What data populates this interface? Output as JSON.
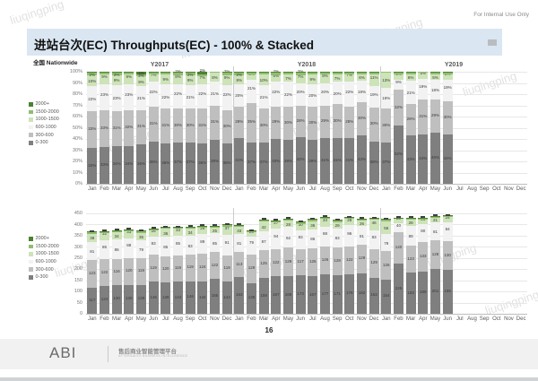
{
  "meta": {
    "confidential": "For Internal Use Only",
    "page_number": "16"
  },
  "title": {
    "text": "进站台次(EC) Throughputs(EC)  - 100% & Stacked"
  },
  "region_label": "全国 Nationwide",
  "watermark": "liuqingping",
  "legend": [
    "2000+",
    "1500-2000",
    "1000-1500",
    "600-1000",
    "300-600",
    "0-300"
  ],
  "footer": {
    "logo": "ABI",
    "platform_cn": "售后商业智能管理平台",
    "platform_en": "AFTERSALES BUSINESS INTELLIGENCE"
  },
  "colors": {
    "band_0_300": "#7f7f7f",
    "band_300_600": "#bfbfbf",
    "band_600_1000": "#f2f2f2",
    "band_1000_1500": "#cde3b8",
    "band_1500_2000": "#8fbe6e",
    "band_2000_plus": "#4a8231",
    "title_band": "#dae6f1"
  },
  "chart_data": [
    {
      "type": "bar",
      "stacked": "100%",
      "title": "",
      "year_labels": [
        "Y2017",
        "Y2018",
        "Y2019"
      ],
      "categories": [
        "Jan",
        "Feb",
        "Mar",
        "Apr",
        "May",
        "Jun",
        "Jul",
        "Aug",
        "Sep",
        "Oct",
        "Nov",
        "Dec",
        "Jan",
        "Feb",
        "Mar",
        "Apr",
        "May",
        "Jun",
        "Jul",
        "Aug",
        "Sep",
        "Oct",
        "Nov",
        "Dec",
        "Jan",
        "Feb",
        "Mar",
        "Apr",
        "May",
        "Jun",
        "Jul",
        "Aug",
        "Sep",
        "Oct",
        "Nov",
        "Dec"
      ],
      "months_with_data": 30,
      "y_ticks": [
        "100%",
        "90%",
        "80%",
        "70%",
        "60%",
        "50%",
        "40%",
        "30%",
        "20%",
        "10%",
        "0%"
      ],
      "ylim": [
        0,
        100
      ],
      "unit": "%",
      "grid": true,
      "legend_position": "left",
      "series": [
        {
          "name": "0-300",
          "color": "#7f7f7f",
          "values": [
            32,
            33,
            34,
            34,
            35,
            38,
            36,
            37,
            37,
            36,
            39,
            36,
            41,
            37,
            37,
            40,
            39,
            42,
            39,
            41,
            41,
            41,
            43,
            38,
            37,
            52,
            43,
            44,
            46,
            44
          ]
        },
        {
          "name": "300-600",
          "color": "#bfbfbf",
          "values": [
            33,
            33,
            31,
            32,
            31,
            31,
            31,
            30,
            30,
            31,
            31,
            30,
            28,
            35,
            30,
            29,
            30,
            28,
            30,
            29,
            30,
            28,
            30,
            30,
            30,
            32,
            28,
            31,
            29,
            30
          ]
        },
        {
          "name": "600-1000",
          "color": "#f2f2f2",
          "values": [
            22,
            23,
            23,
            23,
            21,
            22,
            22,
            22,
            21,
            22,
            21,
            22,
            20,
            21,
            21,
            22,
            22,
            20,
            20,
            20,
            20,
            22,
            19,
            19,
            19,
            9,
            21,
            19,
            18,
            19
          ]
        },
        {
          "name": "1000-1500",
          "color": "#cde3b8",
          "values": [
            10,
            9,
            9,
            9,
            9,
            7,
            9,
            8,
            9,
            7,
            8,
            9,
            8,
            5,
            10,
            6,
            7,
            7,
            9,
            8,
            7,
            7,
            6,
            11,
            13,
            5,
            6,
            5,
            5,
            5
          ]
        },
        {
          "name": "1500-2000",
          "color": "#8fbe6e",
          "values": [
            2,
            1,
            2,
            1,
            2,
            1,
            1,
            2,
            2,
            2,
            1,
            2,
            2,
            1,
            1,
            2,
            1,
            2,
            1,
            1,
            1,
            1,
            1,
            1,
            1,
            1,
            1,
            1,
            1,
            1
          ]
        },
        {
          "name": "2000+",
          "color": "#4a8231",
          "values": [
            1,
            1,
            1,
            1,
            2,
            1,
            1,
            1,
            1,
            2,
            0,
            1,
            1,
            1,
            1,
            1,
            1,
            1,
            1,
            1,
            1,
            1,
            1,
            1,
            0,
            1,
            1,
            0,
            1,
            1
          ]
        }
      ]
    },
    {
      "type": "bar",
      "stacked": "absolute",
      "title": "",
      "year_labels": [],
      "categories": [
        "Jan",
        "Feb",
        "Mar",
        "Apr",
        "May",
        "Jun",
        "Jul",
        "Aug",
        "Sep",
        "Oct",
        "Nov",
        "Dec",
        "Jan",
        "Feb",
        "Mar",
        "Apr",
        "May",
        "Jun",
        "Jul",
        "Aug",
        "Sep",
        "Oct",
        "Nov",
        "Dec",
        "Jan",
        "Feb",
        "Mar",
        "Apr",
        "May",
        "Jun",
        "Jul",
        "Aug",
        "Sep",
        "Oct",
        "Nov",
        "Dec"
      ],
      "months_with_data": 30,
      "y_ticks": [
        "450",
        "400",
        "350",
        "300",
        "250",
        "200",
        "150",
        "100",
        "50",
        "0"
      ],
      "ylim": [
        0,
        450
      ],
      "unit": "",
      "grid": true,
      "legend_position": "left",
      "series": [
        {
          "name": "0-300",
          "color": "#7f7f7f",
          "values": [
            117,
            124,
            130,
            130,
            130,
            145,
            139,
            144,
            146,
            144,
            155,
            144,
            163,
            138,
            159,
            167,
            168,
            173,
            167,
            177,
            171,
            178,
            182,
            162,
            154,
            225,
            183,
            189,
            201,
            195
          ]
        },
        {
          "name": "300-600",
          "color": "#bfbfbf",
          "values": [
            123,
            122,
            116,
            120,
            119,
            119,
            120,
            119,
            119,
            124,
            122,
            119,
            113,
            129,
            125,
            122,
            129,
            117,
            126,
            126,
            128,
            122,
            129,
            129,
            126,
            140,
            123,
            133,
            128,
            130
          ]
        },
        {
          "name": "600-1000",
          "color": "#f2f2f2",
          "values": [
            81,
            85,
            86,
            88,
            79,
            83,
            85,
            85,
            83,
            89,
            85,
            91,
            81,
            79,
            87,
            94,
            92,
            83,
            86,
            88,
            83,
            96,
            81,
            83,
            79,
            40,
            89,
            80,
            81,
            84
          ]
        },
        {
          "name": "1000-1500",
          "color": "#cde3b8",
          "values": [
            38,
            32,
            34,
            33,
            35,
            28,
            36,
            33,
            34,
            29,
            25,
            37,
            33,
            20,
            42,
            27,
            28,
            30,
            36,
            34,
            29,
            28,
            26,
            46,
            56,
            20,
            28,
            21,
            21,
            24
          ]
        },
        {
          "name": "1500-2000",
          "color": "#8fbe6e",
          "values": [
            6,
            5,
            5,
            5,
            6,
            5,
            6,
            5,
            5,
            6,
            5,
            6,
            6,
            4,
            6,
            6,
            6,
            6,
            6,
            6,
            6,
            6,
            6,
            6,
            6,
            4,
            5,
            5,
            5,
            5
          ]
        },
        {
          "name": "2000+",
          "color": "#4a8231",
          "values": [
            3,
            3,
            3,
            3,
            3,
            3,
            3,
            3,
            3,
            3,
            3,
            3,
            3,
            2,
            3,
            3,
            3,
            3,
            3,
            3,
            3,
            3,
            3,
            3,
            3,
            2,
            3,
            2,
            2,
            3
          ]
        }
      ]
    }
  ]
}
